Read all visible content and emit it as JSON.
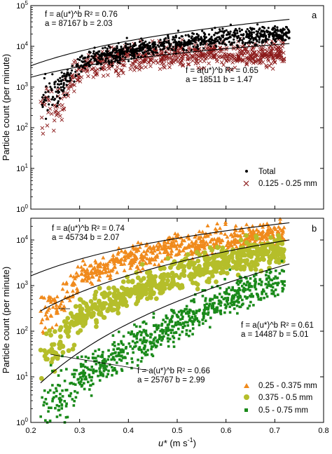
{
  "chart_data": [
    {
      "panel": "a",
      "type": "scatter",
      "title": "",
      "xlabel": "",
      "ylabel": "Particle count (per minute)",
      "xlim": [
        0.2,
        0.8
      ],
      "ylim": [
        1,
        100000
      ],
      "yscale": "log",
      "grid": false,
      "legend_position": "bottom-right",
      "y_ticks": [
        "10^0",
        "10^1",
        "10^2",
        "10^3",
        "10^4",
        "10^5"
      ],
      "series": [
        {
          "name": "Total",
          "marker": "dot",
          "color": "#000000",
          "summary": {
            "x_range": [
              0.22,
              0.73
            ],
            "y_center_at_x": [
              [
                0.25,
                600
              ],
              [
                0.3,
                4000
              ],
              [
                0.4,
                8000
              ],
              [
                0.5,
                12000
              ],
              [
                0.6,
                17000
              ],
              [
                0.7,
                20000
              ]
            ]
          }
        },
        {
          "name": "0.125 - 0.25 mm",
          "marker": "x",
          "color": "#8b1a1a",
          "summary": {
            "x_range": [
              0.22,
              0.72
            ],
            "y_center_at_x": [
              [
                0.25,
                300
              ],
              [
                0.3,
                2500
              ],
              [
                0.4,
                5000
              ],
              [
                0.5,
                6000
              ],
              [
                0.6,
                6500
              ],
              [
                0.7,
                7000
              ]
            ]
          }
        }
      ],
      "fits": [
        {
          "label_line1": "f = a(u*)^b   R² = 0.76",
          "label_line2": "a = 87167   b = 2.03",
          "a": 87167,
          "b": 2.03,
          "r2": 0.76
        },
        {
          "label_line1": "f = a(u*)^b   R² = 0.65",
          "label_line2": "a = 18511   b = 1.47",
          "a": 18511,
          "b": 1.47,
          "r2": 0.65
        }
      ]
    },
    {
      "panel": "b",
      "type": "scatter",
      "title": "",
      "xlabel": "u* (m s⁻¹)",
      "ylabel": "Particle count (per minute)",
      "xlim": [
        0.2,
        0.8
      ],
      "ylim": [
        1,
        30000
      ],
      "yscale": "log",
      "grid": false,
      "legend_position": "bottom-right",
      "x_ticks": [
        "0.2",
        "0.3",
        "0.4",
        "0.5",
        "0.6",
        "0.7",
        "0.8"
      ],
      "y_ticks": [
        "10^0",
        "10^1",
        "10^2",
        "10^3",
        "10^4"
      ],
      "series": [
        {
          "name": "0.25 - 0.375 mm",
          "marker": "triangle",
          "color": "#f08a1c",
          "summary": {
            "x_range": [
              0.22,
              0.72
            ],
            "y_center_at_x": [
              [
                0.25,
                300
              ],
              [
                0.3,
                1500
              ],
              [
                0.4,
                4000
              ],
              [
                0.5,
                7000
              ],
              [
                0.6,
                10000
              ],
              [
                0.7,
                14000
              ]
            ]
          }
        },
        {
          "name": "0.375 - 0.5 mm",
          "marker": "circle",
          "color": "#b5be2a",
          "summary": {
            "x_range": [
              0.22,
              0.72
            ],
            "y_center_at_x": [
              [
                0.25,
                40
              ],
              [
                0.3,
                200
              ],
              [
                0.4,
                700
              ],
              [
                0.5,
                1800
              ],
              [
                0.6,
                3500
              ],
              [
                0.7,
                6000
              ]
            ]
          }
        },
        {
          "name": "0.5 - 0.75 mm",
          "marker": "square",
          "color": "#1a8a1a",
          "summary": {
            "x_range": [
              0.22,
              0.72
            ],
            "y_center_at_x": [
              [
                0.25,
                3
              ],
              [
                0.3,
                10
              ],
              [
                0.4,
                40
              ],
              [
                0.5,
                150
              ],
              [
                0.6,
                500
              ],
              [
                0.7,
                1200
              ]
            ]
          }
        }
      ],
      "fits": [
        {
          "label_line1": "f = a(u*)^b   R² = 0.74",
          "label_line2": "a = 45734   b = 2.07",
          "a": 45734,
          "b": 2.07,
          "r2": 0.74
        },
        {
          "label_line1": "f = a(u*)^b   R² = 0.61",
          "label_line2": "a = 14487   b = 5.01",
          "a": 14487,
          "b": 5.01,
          "r2": 0.61
        },
        {
          "label_line1": "f = a(u*)^b   R² = 0.66",
          "label_line2": "a = 25767   b = 2.99",
          "a": 25767,
          "b": 2.99,
          "r2": 0.66
        }
      ]
    }
  ],
  "figure": {
    "ylabel": "Particle count (per minute)",
    "xlabel_prefix": "u*",
    "xlabel_unit": "(m s",
    "xlabel_exp": "-1",
    "xlabel_close": ")",
    "panel_a_label": "a",
    "panel_b_label": "b",
    "legend_a": [
      "Total",
      "0.125 - 0.25 mm"
    ],
    "legend_b": [
      "0.25 - 0.375 mm",
      "0.375 - 0.5 mm",
      "0.5 - 0.75 mm"
    ]
  }
}
